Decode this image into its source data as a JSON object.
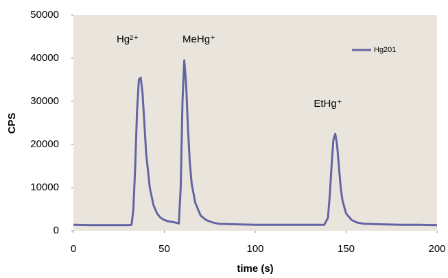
{
  "chart_data": {
    "type": "line",
    "x_label": "time (s)",
    "y_label": "CPS",
    "annotations": [
      "Hg²⁺",
      "MeHg⁺",
      "EtHg⁺"
    ],
    "series": [
      {
        "name": "Hg201",
        "color": "#6464a4",
        "x": [
          0,
          10,
          20,
          30,
          32,
          33,
          34,
          35,
          36,
          37,
          38,
          39,
          40,
          42,
          44,
          46,
          48,
          50,
          52,
          55,
          57,
          58,
          59,
          60,
          61,
          62,
          63,
          64,
          65,
          67,
          70,
          73,
          76,
          80,
          90,
          100,
          110,
          120,
          130,
          138,
          140,
          141,
          142,
          143,
          144,
          145,
          146,
          147,
          148,
          150,
          153,
          156,
          160,
          170,
          180,
          190,
          200
        ],
        "values": [
          1400,
          1300,
          1300,
          1300,
          1400,
          5000,
          15000,
          28000,
          35000,
          35500,
          32000,
          25000,
          18000,
          10000,
          6000,
          4000,
          3000,
          2500,
          2200,
          2000,
          1800,
          1700,
          10000,
          30000,
          39500,
          34000,
          24000,
          16000,
          11000,
          6500,
          3500,
          2500,
          2000,
          1600,
          1500,
          1400,
          1400,
          1400,
          1400,
          1400,
          3000,
          8000,
          15000,
          21000,
          22500,
          20000,
          15000,
          10000,
          7000,
          4000,
          2500,
          1900,
          1600,
          1500,
          1400,
          1400,
          1300
        ]
      }
    ],
    "xlim": [
      0,
      200
    ],
    "xticks": [
      0,
      50,
      100,
      150,
      200
    ],
    "ylim": [
      0,
      50000
    ],
    "yticks": [
      0,
      10000,
      20000,
      30000,
      40000,
      50000
    ],
    "background": "#e9e5dc",
    "legend": "top-right"
  }
}
